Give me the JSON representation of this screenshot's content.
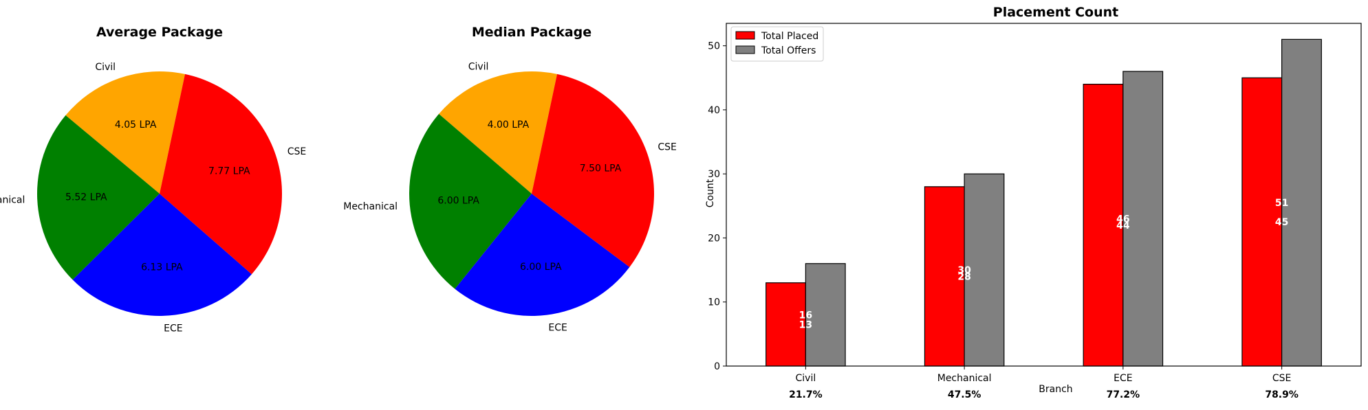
{
  "chart_data": [
    {
      "type": "pie",
      "title": "Average Package",
      "slices": [
        {
          "label": "Civil",
          "value": 4.05,
          "value_label": "4.05 LPA",
          "color": "#ffa500"
        },
        {
          "label": "Mechanical",
          "value": 5.52,
          "value_label": "5.52 LPA",
          "color": "#008000"
        },
        {
          "label": "ECE",
          "value": 6.13,
          "value_label": "6.13 LPA",
          "color": "#0000ff"
        },
        {
          "label": "CSE",
          "value": 7.77,
          "value_label": "7.77 LPA",
          "color": "#ff0000"
        }
      ]
    },
    {
      "type": "pie",
      "title": "Median Package",
      "slices": [
        {
          "label": "Civil",
          "value": 4.0,
          "value_label": "4.00 LPA",
          "color": "#ffa500"
        },
        {
          "label": "Mechanical",
          "value": 6.0,
          "value_label": "6.00 LPA",
          "color": "#008000"
        },
        {
          "label": "ECE",
          "value": 6.0,
          "value_label": "6.00 LPA",
          "color": "#0000ff"
        },
        {
          "label": "CSE",
          "value": 7.5,
          "value_label": "7.50 LPA",
          "color": "#ff0000"
        }
      ]
    },
    {
      "type": "bar",
      "title": "Placement Count",
      "xlabel": "Branch",
      "ylabel": "Count",
      "categories": [
        "Civil",
        "Mechanical",
        "ECE",
        "CSE"
      ],
      "series": [
        {
          "name": "Total Placed",
          "values": [
            13,
            28,
            44,
            45
          ],
          "color": "#ff0000"
        },
        {
          "name": "Total Offers",
          "values": [
            16,
            30,
            46,
            51
          ],
          "color": "#808080"
        }
      ],
      "placement_rates": [
        "21.7%",
        "47.5%",
        "77.2%",
        "78.9%"
      ],
      "ylim": [
        0,
        53.5
      ],
      "yticks": [
        0,
        10,
        20,
        30,
        40,
        50
      ],
      "legend": "top-left",
      "grid": false
    }
  ]
}
